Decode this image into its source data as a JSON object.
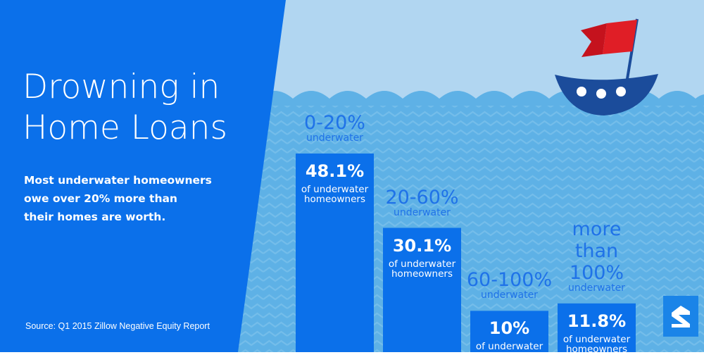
{
  "headline": {
    "title_line1": "Drowning in",
    "title_line2": "Home Loans",
    "subtitle_lines": [
      "Most underwater homeowners",
      "owe over 20% more than",
      "their homes are worth."
    ]
  },
  "source": "Source: Q1 2015 Zillow Negative Equity Report",
  "colors": {
    "left_panel": "#0b70ea",
    "sky": "#b1d6f1",
    "water": "#5eb1e6",
    "water_wave": "#74bdea",
    "bar": "#0b70ea",
    "label": "#1f72e8",
    "boat_hull": "#1b4c9b",
    "flag": "#e01e26",
    "logo": "#1a84e8"
  },
  "icons": {
    "boat": "boat-icon",
    "flag": "flag-icon",
    "logo": "zillow-logo-icon"
  },
  "chart_data": {
    "type": "bar",
    "categories": [
      "0-20%",
      "20-60%",
      "60-100%",
      "more than 100%"
    ],
    "category_note": "underwater",
    "values": [
      48.1,
      30.1,
      10,
      11.8
    ],
    "value_labels": [
      "48.1%",
      "30.1%",
      "10%",
      "11.8%"
    ],
    "value_suffix_lines": [
      "of underwater",
      "homeowners"
    ],
    "title": "",
    "xlabel": "",
    "ylabel": "",
    "ylim": [
      0,
      48.1
    ]
  }
}
